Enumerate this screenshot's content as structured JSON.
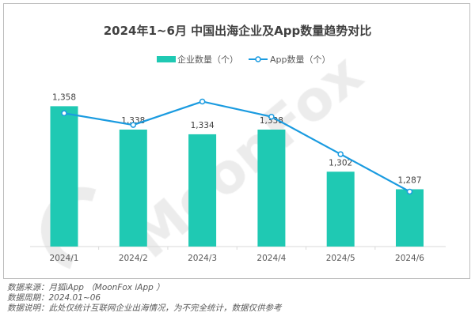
{
  "chart_data": {
    "type": "bar+line",
    "title": "2024年1~6月 中国出海企业及App数量趋势对比",
    "categories": [
      "2024/1",
      "2024/2",
      "2024/3",
      "2024/4",
      "2024/5",
      "2024/6"
    ],
    "series": [
      {
        "name": "企业数量（个）",
        "type": "bar",
        "color": "#1fc9b3",
        "values": [
          1358,
          1338,
          1334,
          1338,
          1302,
          1287
        ],
        "labels": [
          "1,358",
          "1,338",
          "1,334",
          "1,338",
          "1,302",
          "1,287"
        ]
      },
      {
        "name": "App数量（个）",
        "type": "line",
        "color": "#1a9be0",
        "values_estimated": [
          1352,
          1342,
          1362,
          1349,
          1317,
          1285
        ]
      }
    ],
    "legend": "top-center",
    "grid": false,
    "y_axis_visible": false
  },
  "watermark": "MoonFox",
  "notes": [
    "数据来源：月狐iApp （MoonFox iApp ）",
    "数据周期：2024.01~06",
    "数据说明：此处仅统计互联网企业出海情况，为不完全统计，数据仅供参考"
  ]
}
